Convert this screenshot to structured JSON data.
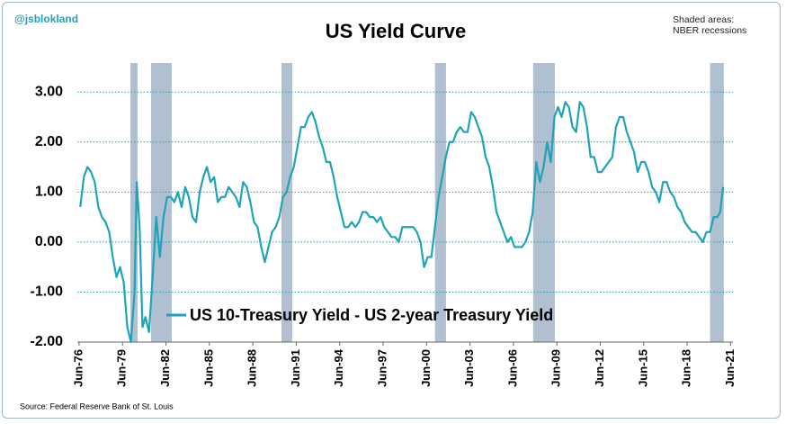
{
  "chart_data": {
    "type": "line",
    "title": "US Yield Curve",
    "handle": "@jsblokland",
    "annotation": "Shaded areas: NBER recessions",
    "source": "Source: Federal Reserve Bank of St. Louis",
    "x": [
      1976.5,
      1976.75,
      1977.0,
      1977.25,
      1977.5,
      1977.75,
      1978.0,
      1978.25,
      1978.5,
      1978.75,
      1979.0,
      1979.25,
      1979.5,
      1979.75,
      1980.0,
      1980.25,
      1980.4,
      1980.6,
      1980.8,
      1981.0,
      1981.25,
      1981.5,
      1981.75,
      1982.0,
      1982.25,
      1982.5,
      1982.75,
      1983.0,
      1983.25,
      1983.5,
      1983.75,
      1984.0,
      1984.25,
      1984.5,
      1984.75,
      1985.0,
      1985.25,
      1985.5,
      1985.75,
      1986.0,
      1986.25,
      1986.5,
      1986.75,
      1987.0,
      1987.25,
      1987.5,
      1987.75,
      1988.0,
      1988.25,
      1988.5,
      1988.75,
      1989.0,
      1989.25,
      1989.5,
      1989.75,
      1990.0,
      1990.25,
      1990.5,
      1990.75,
      1991.0,
      1991.25,
      1991.5,
      1991.75,
      1992.0,
      1992.25,
      1992.5,
      1992.75,
      1993.0,
      1993.25,
      1993.5,
      1993.75,
      1994.0,
      1994.25,
      1994.5,
      1994.75,
      1995.0,
      1995.25,
      1995.5,
      1995.75,
      1996.0,
      1996.25,
      1996.5,
      1996.75,
      1997.0,
      1997.25,
      1997.5,
      1997.75,
      1998.0,
      1998.25,
      1998.5,
      1998.75,
      1999.0,
      1999.25,
      1999.5,
      1999.75,
      2000.0,
      2000.25,
      2000.5,
      2000.75,
      2001.0,
      2001.25,
      2001.5,
      2001.75,
      2002.0,
      2002.25,
      2002.5,
      2002.75,
      2003.0,
      2003.25,
      2003.5,
      2003.75,
      2004.0,
      2004.25,
      2004.5,
      2004.75,
      2005.0,
      2005.25,
      2005.5,
      2005.75,
      2006.0,
      2006.25,
      2006.5,
      2006.75,
      2007.0,
      2007.25,
      2007.5,
      2007.75,
      2008.0,
      2008.25,
      2008.5,
      2008.75,
      2009.0,
      2009.25,
      2009.5,
      2009.75,
      2010.0,
      2010.25,
      2010.5,
      2010.75,
      2011.0,
      2011.25,
      2011.5,
      2011.75,
      2012.0,
      2012.25,
      2012.5,
      2012.75,
      2013.0,
      2013.25,
      2013.5,
      2013.75,
      2014.0,
      2014.25,
      2014.5,
      2014.75,
      2015.0,
      2015.25,
      2015.5,
      2015.75,
      2016.0,
      2016.25,
      2016.5,
      2016.75,
      2017.0,
      2017.25,
      2017.5,
      2017.75,
      2018.0,
      2018.25,
      2018.5,
      2018.75,
      2019.0,
      2019.25,
      2019.5,
      2019.75,
      2020.0,
      2020.25,
      2020.5,
      2020.7,
      2020.9
    ],
    "series": [
      {
        "name": "US 10-Treasury Yield - US 2-year Treasury Yield",
        "color": "#1fa3b8",
        "values": [
          0.7,
          1.3,
          1.5,
          1.4,
          1.2,
          0.7,
          0.5,
          0.4,
          0.2,
          -0.3,
          -0.7,
          -0.5,
          -0.8,
          -1.7,
          -2.0,
          -1.0,
          1.2,
          0.3,
          -1.7,
          -1.5,
          -1.8,
          -0.7,
          0.5,
          -0.3,
          0.5,
          0.9,
          0.9,
          0.8,
          1.0,
          0.7,
          1.1,
          0.9,
          0.5,
          0.4,
          1.0,
          1.3,
          1.5,
          1.2,
          1.3,
          0.8,
          0.9,
          0.9,
          1.1,
          1.0,
          0.9,
          0.7,
          1.2,
          1.1,
          0.8,
          0.4,
          0.3,
          -0.1,
          -0.4,
          -0.1,
          0.2,
          0.3,
          0.5,
          0.9,
          1.0,
          1.3,
          1.5,
          1.9,
          2.3,
          2.3,
          2.5,
          2.6,
          2.4,
          2.1,
          1.9,
          1.6,
          1.6,
          1.3,
          0.9,
          0.6,
          0.3,
          0.3,
          0.4,
          0.3,
          0.4,
          0.6,
          0.6,
          0.5,
          0.5,
          0.4,
          0.5,
          0.3,
          0.2,
          0.1,
          0.1,
          0.0,
          0.3,
          0.3,
          0.3,
          0.3,
          0.2,
          0.0,
          -0.5,
          -0.3,
          -0.3,
          0.3,
          0.9,
          1.3,
          1.7,
          2.0,
          2.0,
          2.2,
          2.3,
          2.2,
          2.2,
          2.6,
          2.5,
          2.3,
          2.1,
          1.7,
          1.5,
          1.1,
          0.6,
          0.4,
          0.2,
          0.0,
          0.1,
          -0.1,
          -0.1,
          -0.1,
          0.0,
          0.2,
          0.6,
          1.6,
          1.2,
          1.5,
          2.0,
          1.6,
          2.5,
          2.7,
          2.5,
          2.8,
          2.7,
          2.3,
          2.2,
          2.8,
          2.7,
          2.3,
          1.7,
          1.7,
          1.4,
          1.4,
          1.5,
          1.6,
          1.7,
          2.3,
          2.5,
          2.5,
          2.2,
          2.0,
          1.8,
          1.4,
          1.6,
          1.6,
          1.4,
          1.1,
          1.0,
          0.8,
          1.2,
          1.2,
          1.0,
          0.9,
          0.7,
          0.6,
          0.4,
          0.3,
          0.2,
          0.2,
          0.1,
          0.0,
          0.2,
          0.2,
          0.5,
          0.5,
          0.6,
          1.1
        ]
      }
    ],
    "recessions": [
      [
        1979.96,
        1980.46
      ],
      [
        1981.39,
        1982.82
      ],
      [
        1990.4,
        1991.14
      ],
      [
        2001.0,
        2001.76
      ],
      [
        2007.78,
        2009.28
      ],
      [
        2020.0,
        2020.95
      ]
    ],
    "recession_color": "#b1c0d0",
    "xlim": [
      1976.3,
      2021.58
    ],
    "xticks": [
      {
        "value": 1976.42,
        "label": "Jun-76"
      },
      {
        "value": 1979.42,
        "label": "Jun-79"
      },
      {
        "value": 1982.42,
        "label": "Jun-82"
      },
      {
        "value": 1985.42,
        "label": "Jun-85"
      },
      {
        "value": 1988.42,
        "label": "Jun-88"
      },
      {
        "value": 1991.42,
        "label": "Jun-91"
      },
      {
        "value": 1994.42,
        "label": "Jun-94"
      },
      {
        "value": 1997.42,
        "label": "Jun-97"
      },
      {
        "value": 2000.42,
        "label": "Jun-00"
      },
      {
        "value": 2003.42,
        "label": "Jun-03"
      },
      {
        "value": 2006.42,
        "label": "Jun-06"
      },
      {
        "value": 2009.42,
        "label": "Jun-09"
      },
      {
        "value": 2012.42,
        "label": "Jun-12"
      },
      {
        "value": 2015.42,
        "label": "Jun-15"
      },
      {
        "value": 2018.42,
        "label": "Jun-18"
      },
      {
        "value": 2021.42,
        "label": "Jun-21"
      }
    ],
    "ylim": [
      -2,
      3.58
    ],
    "yticks": [
      {
        "value": 3,
        "label": "3.00"
      },
      {
        "value": 2,
        "label": "2.00"
      },
      {
        "value": 1,
        "label": "1.00"
      },
      {
        "value": 0,
        "label": "0.00"
      },
      {
        "value": -1,
        "label": "-1.00"
      },
      {
        "value": -2,
        "label": "-2.00"
      }
    ],
    "grid": true
  }
}
